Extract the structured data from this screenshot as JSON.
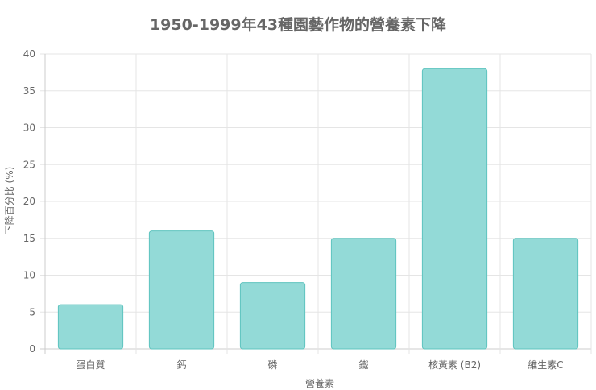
{
  "chart_data": {
    "type": "bar",
    "title": "1950-1999年43種園藝作物的營養素下降",
    "xlabel": "營養素",
    "ylabel": "下降百分比 (%)",
    "categories": [
      "蛋白質",
      "鈣",
      "磷",
      "鐵",
      "核黃素 (B2)",
      "維生素C"
    ],
    "values": [
      6,
      16,
      9,
      15,
      38,
      15
    ],
    "ylim": [
      0,
      40
    ],
    "yticks": [
      "0",
      "5",
      "10",
      "15",
      "20",
      "25",
      "30",
      "35",
      "40"
    ],
    "grid": true,
    "legend": "none",
    "colors": {
      "bar_fill": "#93dad7",
      "bar_stroke": "#5fc4bf",
      "grid": "#e5e5e5",
      "text": "#666666"
    }
  }
}
